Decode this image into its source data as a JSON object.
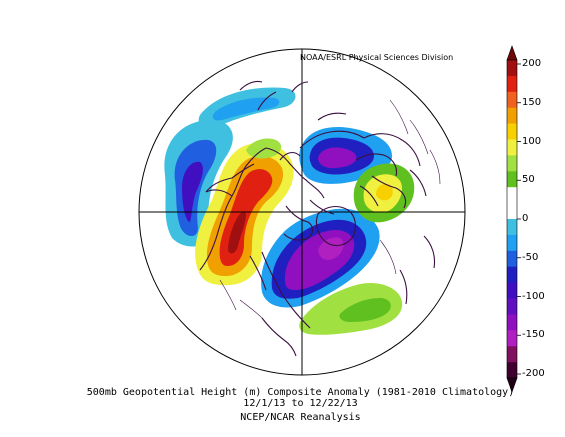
{
  "map": {
    "credit": "NOAA/ESRL Physical Sciences Division",
    "caption_line1": "500mb Geopotential Height (m) Composite Anomaly (1981-2010 Climatology)",
    "caption_line2": "12/1/13  to 12/22/13",
    "caption_line3": "NCEP/NCAR Reanalysis",
    "projection": "north-polar-stereographic"
  },
  "colorbar": {
    "ticks": [
      {
        "value": 200,
        "label": "200"
      },
      {
        "value": 150,
        "label": "150"
      },
      {
        "value": 100,
        "label": "100"
      },
      {
        "value": 50,
        "label": "50"
      },
      {
        "value": 0,
        "label": "0"
      },
      {
        "value": -50,
        "label": "-50"
      },
      {
        "value": -100,
        "label": "-100"
      },
      {
        "value": -150,
        "label": "-150"
      },
      {
        "value": -200,
        "label": "-200"
      }
    ],
    "colors": [
      "#a01010",
      "#e02010",
      "#f06020",
      "#f0a000",
      "#f8d000",
      "#f0f040",
      "#a0e040",
      "#60c020",
      "#ffffff",
      "#ffffff",
      "#40c0e0",
      "#20a0f0",
      "#2060e0",
      "#2020c0",
      "#4010c0",
      "#6010c0",
      "#9010c0",
      "#b020c0",
      "#801060",
      "#400030"
    ]
  },
  "colors": {
    "border": "#3a1040",
    "frame": "#000000"
  }
}
